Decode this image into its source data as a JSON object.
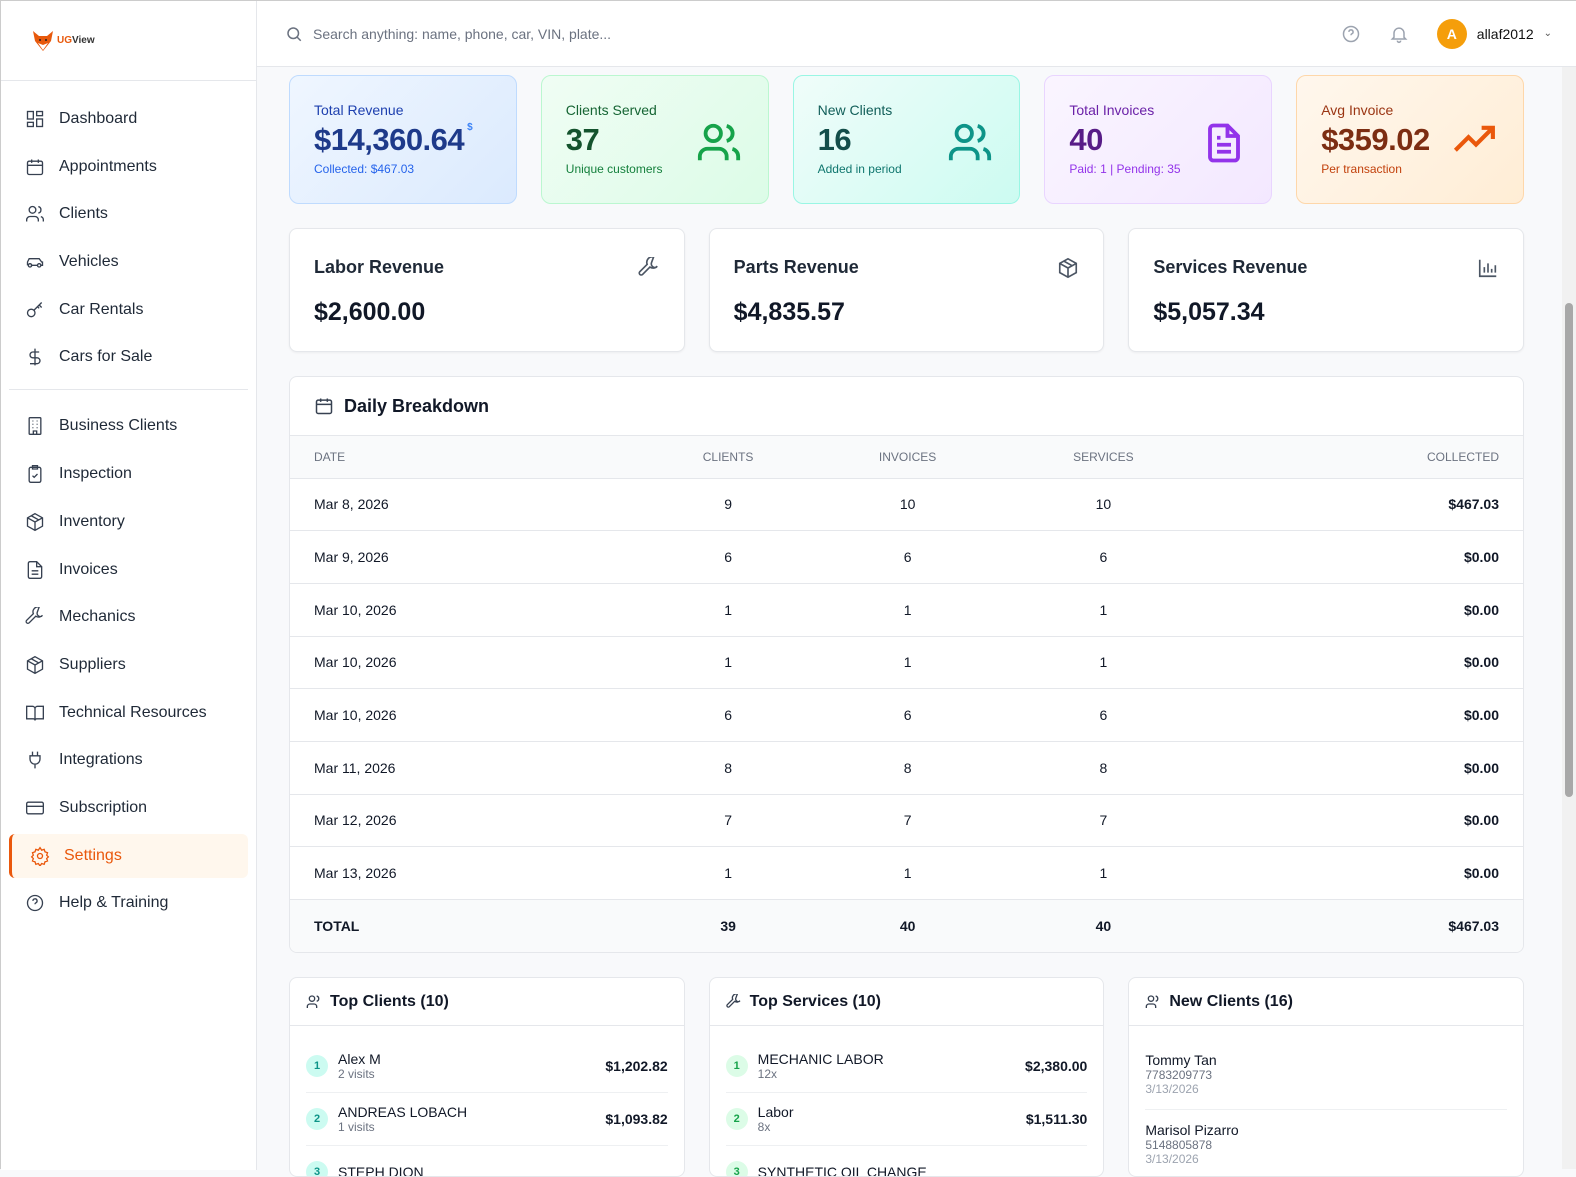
{
  "app": {
    "logo_text_a": "UG",
    "logo_text_b": "View"
  },
  "sidebar": {
    "items": [
      {
        "label": "Dashboard",
        "icon": "grid-icon"
      },
      {
        "label": "Appointments",
        "icon": "calendar-icon"
      },
      {
        "label": "Clients",
        "icon": "users-icon"
      },
      {
        "label": "Vehicles",
        "icon": "car-icon"
      },
      {
        "label": "Car Rentals",
        "icon": "key-icon"
      },
      {
        "label": "Cars for Sale",
        "icon": "dollar-icon"
      },
      {
        "label": "Business Clients",
        "icon": "building-icon"
      },
      {
        "label": "Inspection",
        "icon": "clipboard-check-icon"
      },
      {
        "label": "Inventory",
        "icon": "package-icon"
      },
      {
        "label": "Invoices",
        "icon": "file-icon"
      },
      {
        "label": "Mechanics",
        "icon": "wrench-icon"
      },
      {
        "label": "Suppliers",
        "icon": "package-icon"
      },
      {
        "label": "Technical Resources",
        "icon": "book-icon"
      },
      {
        "label": "Integrations",
        "icon": "plug-icon"
      },
      {
        "label": "Subscription",
        "icon": "credit-card-icon"
      },
      {
        "label": "Settings",
        "icon": "gear-icon",
        "active": true
      },
      {
        "label": "Help & Training",
        "icon": "help-circle-icon"
      }
    ]
  },
  "header": {
    "search_placeholder": "Search anything: name, phone, car, VIN, plate...",
    "avatar_initial": "A",
    "username": "allaf2012"
  },
  "stats": [
    {
      "label": "Total Revenue",
      "value": "$14,360.64",
      "suffix": "$",
      "sub": "Collected: $467.03",
      "color": "#1e3a8a"
    },
    {
      "label": "Clients Served",
      "value": "37",
      "sub": "Unique customers",
      "color": "#14532d"
    },
    {
      "label": "New Clients",
      "value": "16",
      "sub": "Added in period",
      "color": "#134e4a"
    },
    {
      "label": "Total Invoices",
      "value": "40",
      "sub_paid": "Paid: 1",
      "sub_pending": "Pending: 35",
      "color": "#581c87"
    },
    {
      "label": "Avg Invoice",
      "value": "$359.02",
      "sub": "Per transaction",
      "color": "#7c2d12"
    }
  ],
  "revenue": [
    {
      "title": "Labor Revenue",
      "value": "$2,600.00"
    },
    {
      "title": "Parts Revenue",
      "value": "$4,835.57"
    },
    {
      "title": "Services Revenue",
      "value": "$5,057.34"
    }
  ],
  "daily": {
    "title": "Daily Breakdown",
    "columns": [
      "DATE",
      "CLIENTS",
      "INVOICES",
      "SERVICES",
      "COLLECTED"
    ],
    "rows": [
      [
        "Mar 8, 2026",
        "9",
        "10",
        "10",
        "$467.03"
      ],
      [
        "Mar 9, 2026",
        "6",
        "6",
        "6",
        "$0.00"
      ],
      [
        "Mar 10, 2026",
        "1",
        "1",
        "1",
        "$0.00"
      ],
      [
        "Mar 10, 2026",
        "1",
        "1",
        "1",
        "$0.00"
      ],
      [
        "Mar 10, 2026",
        "6",
        "6",
        "6",
        "$0.00"
      ],
      [
        "Mar 11, 2026",
        "8",
        "8",
        "8",
        "$0.00"
      ],
      [
        "Mar 12, 2026",
        "7",
        "7",
        "7",
        "$0.00"
      ],
      [
        "Mar 13, 2026",
        "1",
        "1",
        "1",
        "$0.00"
      ]
    ],
    "total": [
      "TOTAL",
      "39",
      "40",
      "40",
      "$467.03"
    ]
  },
  "top_clients": {
    "title": "Top Clients (10)",
    "items": [
      {
        "rank": "1",
        "name": "Alex M",
        "sub": "2 visits",
        "amount": "$1,202.82"
      },
      {
        "rank": "2",
        "name": "ANDREAS LOBACH",
        "sub": "1 visits",
        "amount": "$1,093.82"
      },
      {
        "rank": "3",
        "name": "STEPH DION",
        "sub": "",
        "amount": ""
      }
    ]
  },
  "top_services": {
    "title": "Top Services (10)",
    "items": [
      {
        "rank": "1",
        "name": "MECHANIC LABOR",
        "sub": "12x",
        "amount": "$2,380.00"
      },
      {
        "rank": "2",
        "name": "Labor",
        "sub": "8x",
        "amount": "$1,511.30"
      },
      {
        "rank": "3",
        "name": "SYNTHETIC OIL CHANGE",
        "sub": "",
        "amount": ""
      }
    ]
  },
  "new_clients": {
    "title": "New Clients (16)",
    "items": [
      {
        "name": "Tommy Tan",
        "phone": "7783209773",
        "date": "3/13/2026"
      },
      {
        "name": "Marisol Pizarro",
        "phone": "5148805878",
        "date": "3/13/2026"
      }
    ]
  }
}
